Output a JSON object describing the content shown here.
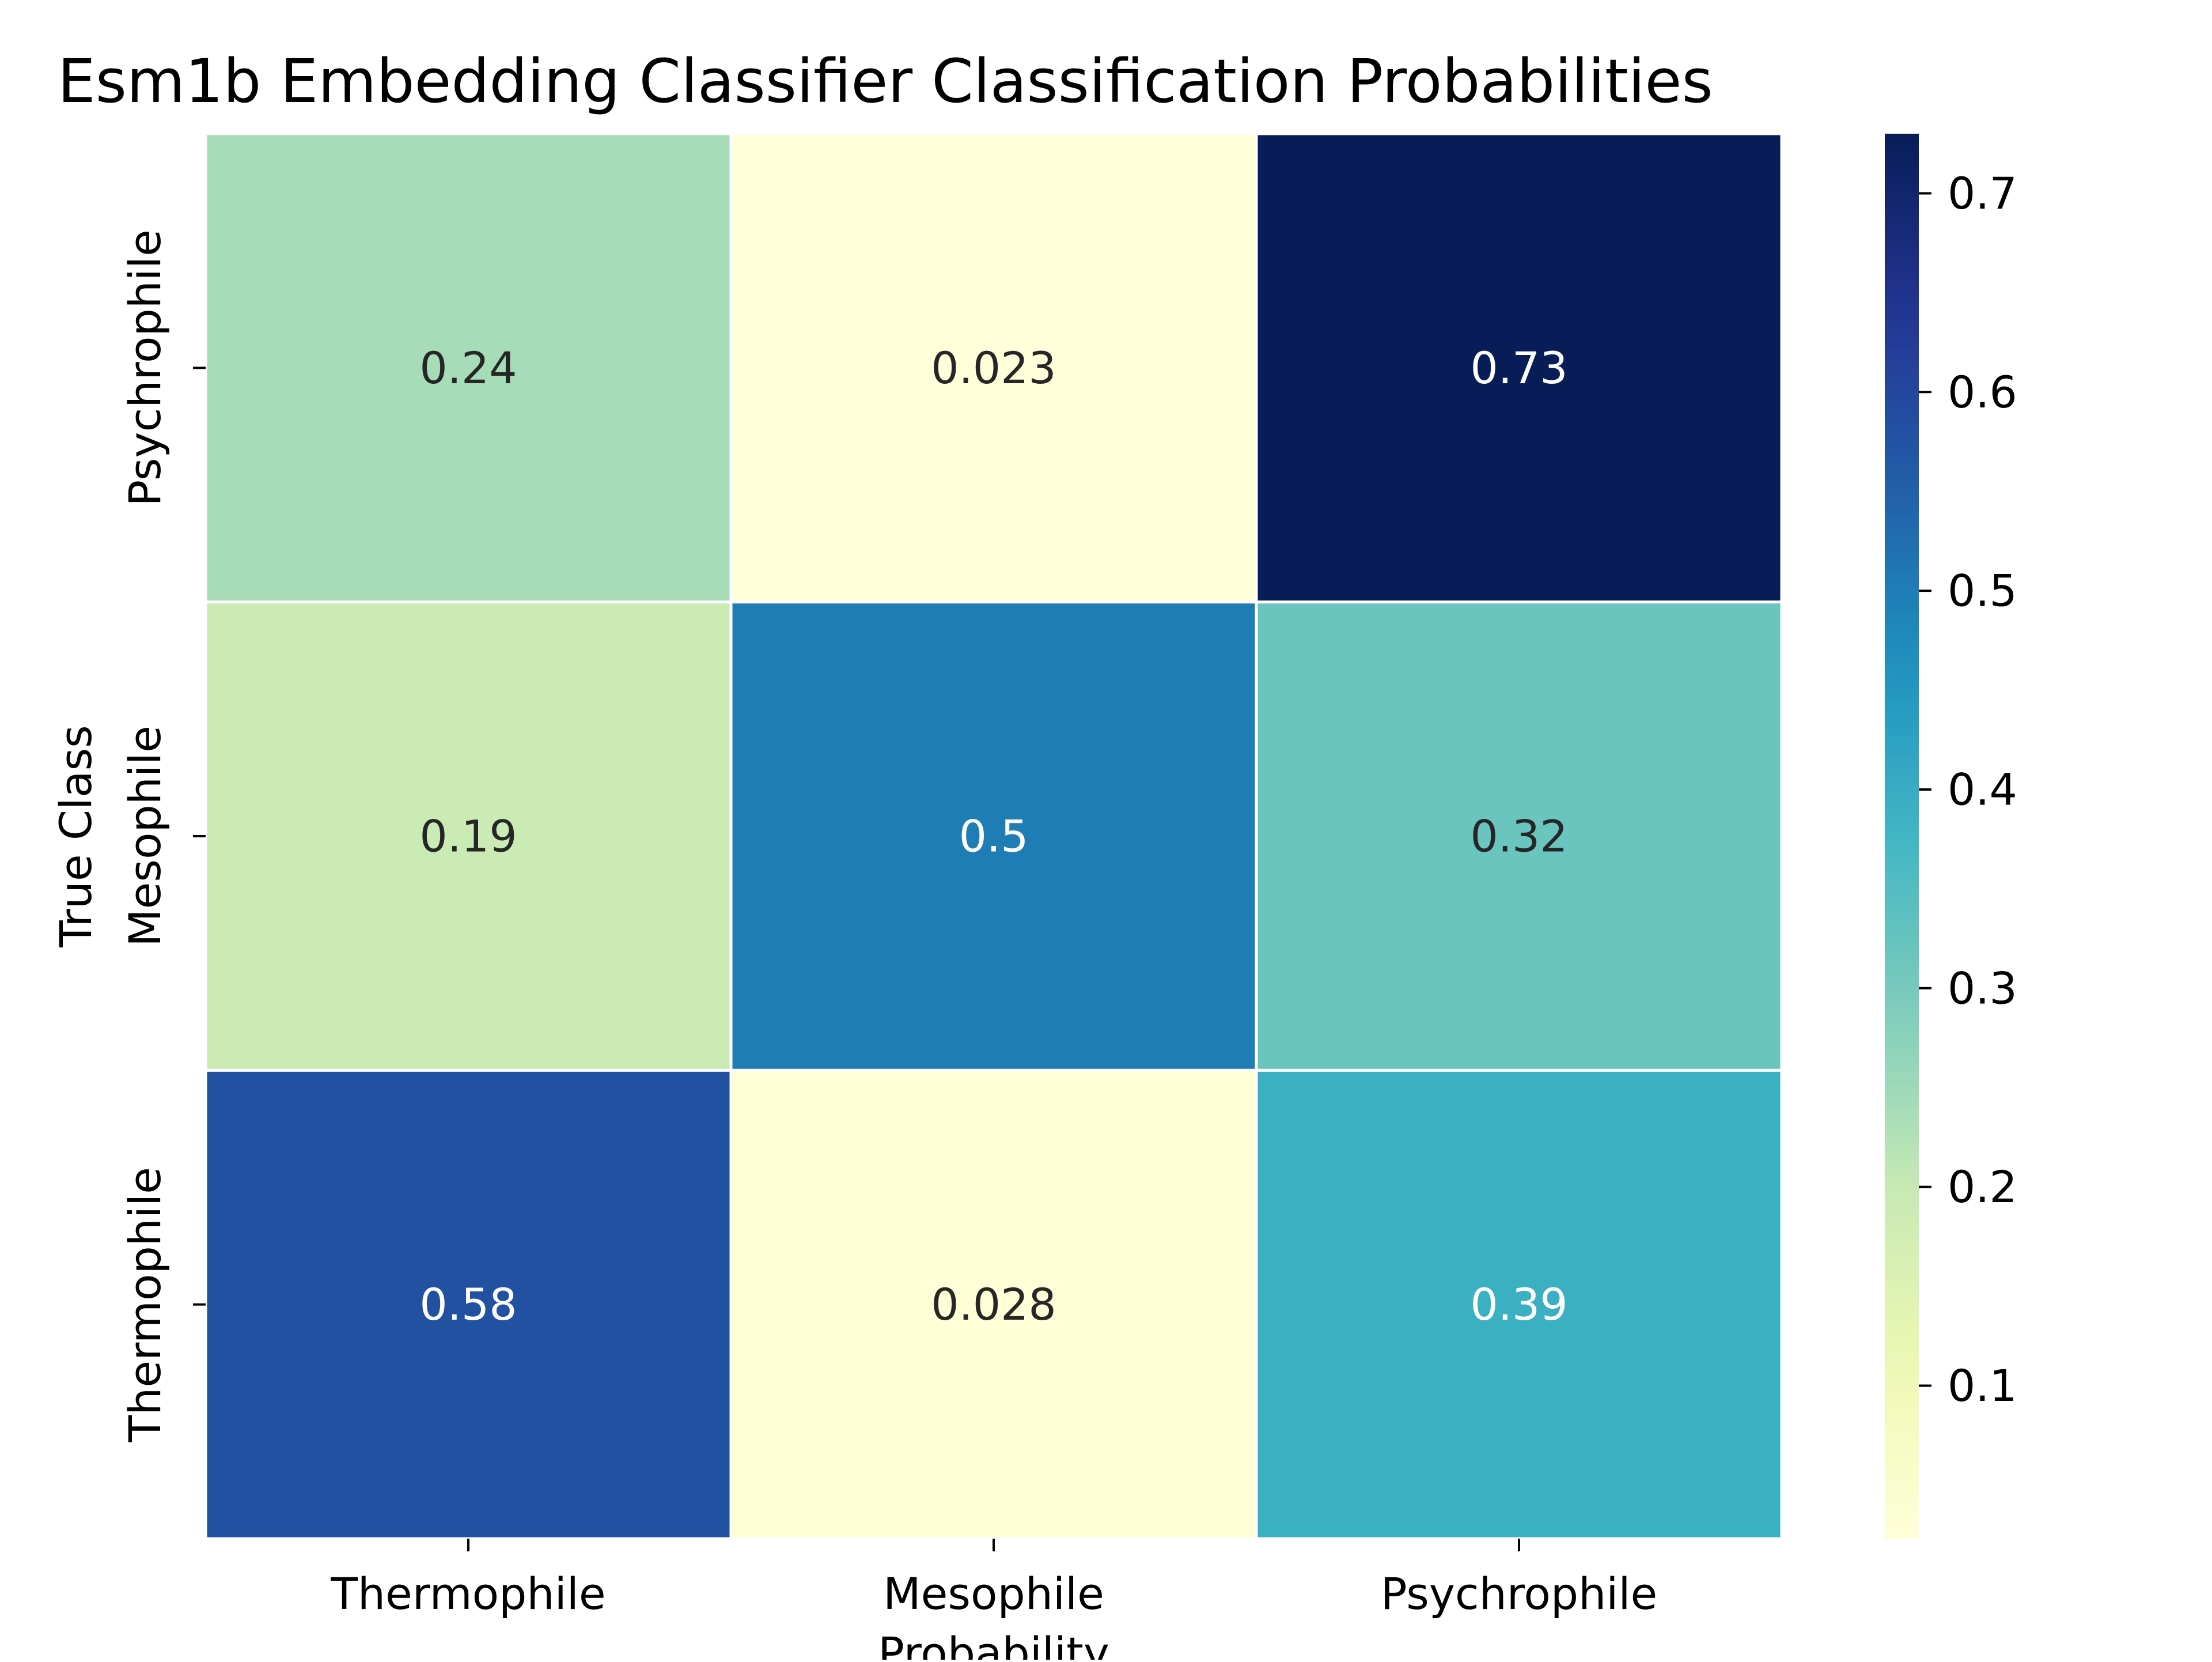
{
  "chart_data": {
    "type": "heatmap",
    "title": "Esm1b Embedding Classifier Classification Probabilities",
    "xlabel": "Probability",
    "ylabel": "True Class",
    "x_categories": [
      "Thermophile",
      "Mesophile",
      "Psychrophile"
    ],
    "y_categories": [
      "Psychrophile",
      "Mesophile",
      "Thermophile"
    ],
    "values": [
      [
        0.24,
        0.023,
        0.73
      ],
      [
        0.19,
        0.5,
        0.32
      ],
      [
        0.58,
        0.028,
        0.39
      ]
    ],
    "value_labels": [
      [
        "0.24",
        "0.023",
        "0.73"
      ],
      [
        "0.19",
        "0.5",
        "0.32"
      ],
      [
        "0.58",
        "0.028",
        "0.39"
      ]
    ],
    "colormap": "YlGnBu",
    "colorbar": {
      "range": [
        0.023,
        0.73
      ],
      "ticks": [
        0.1,
        0.2,
        0.3,
        0.4,
        0.5,
        0.6,
        0.7
      ],
      "tick_labels": [
        "0.1",
        "0.2",
        "0.3",
        "0.4",
        "0.5",
        "0.6",
        "0.7"
      ]
    },
    "colors": {
      "cell_border": "#ffffff",
      "annotation_dark": "#262626",
      "annotation_light": "#ffffff"
    }
  }
}
